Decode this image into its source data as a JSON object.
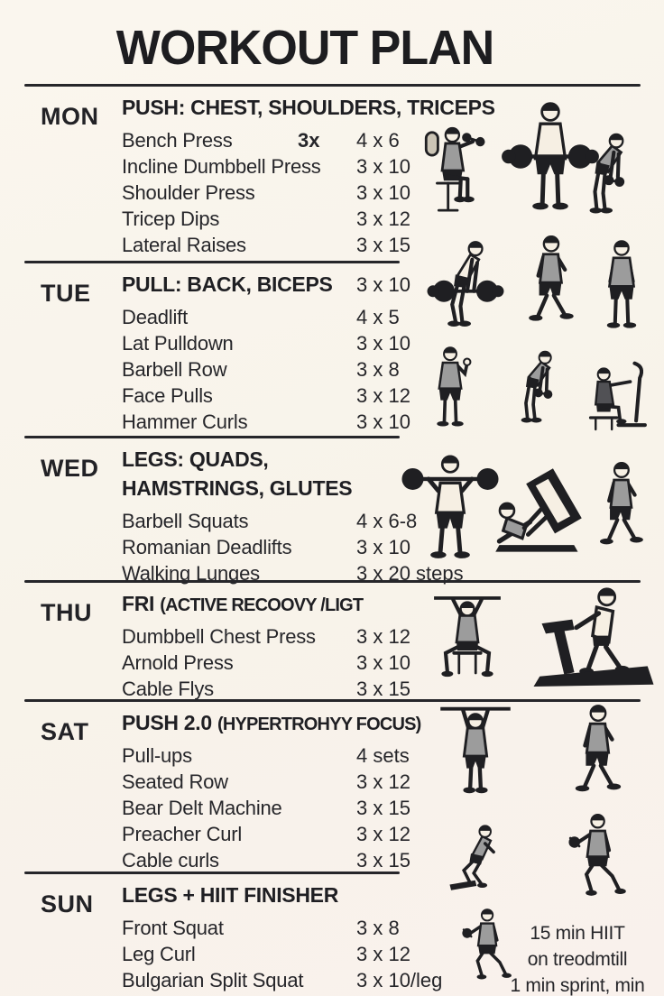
{
  "poster": {
    "title": "WORKOUT PLAN",
    "hiit_note_lines": [
      "15 min HIIT",
      "on treodmtill",
      "1 min sprint, min"
    ]
  },
  "colors": {
    "background": "#f8f3ea",
    "ink": "#1f1f22",
    "figure_gray": "#9c9c9c"
  },
  "sections": [
    {
      "day": "MON",
      "heading": "PUSH: CHEST, SHOULDERS, TRICEPS",
      "heading_note": "",
      "heading_value": "",
      "exercises": [
        {
          "name": "Bench Press",
          "note": "3x",
          "sets": "4 x 6"
        },
        {
          "name": "Incline Dumbbell Press",
          "note": "",
          "sets": "3 x 10"
        },
        {
          "name": "Shoulder Press",
          "note": "",
          "sets": "3 x 10"
        },
        {
          "name": "Tricep Dips",
          "note": "",
          "sets": "3 x 12"
        },
        {
          "name": "Lateral Raises",
          "note": "",
          "sets": "3 x 15"
        }
      ],
      "figures": [
        "seated-dumbbell-press",
        "standing-barbell",
        "bent-over-dumbbell"
      ]
    },
    {
      "day": "TUE",
      "heading": "PULL: BACK, BICEPS",
      "heading_note": "",
      "heading_value": "3 x 10",
      "exercises": [
        {
          "name": "Deadlift",
          "note": "",
          "sets": "4 x 5"
        },
        {
          "name": "Lat Pulldown",
          "note": "",
          "sets": "3 x 10"
        },
        {
          "name": "Barbell Row",
          "note": "",
          "sets": "3 x 8"
        },
        {
          "name": "Face Pulls",
          "note": "",
          "sets": "3 x 12"
        },
        {
          "name": "Hammer Curls",
          "note": "",
          "sets": "3 x 10"
        }
      ],
      "figures": [
        "barbell-deadlift",
        "walking",
        "standing-rest",
        "bicep-curl",
        "bent-over-dumbbell",
        "seated-cable-machine"
      ]
    },
    {
      "day": "WED",
      "heading": "LEGS: QUADS,\nHAMSTRINGS, GLUTES",
      "heading_note": "",
      "heading_value": "",
      "exercises": [
        {
          "name": "Barbell Squats",
          "note": "",
          "sets": "4 x 6-8"
        },
        {
          "name": "Romanian Deadlifts",
          "note": "",
          "sets": "3 x 10"
        },
        {
          "name": "Walking Lunges",
          "note": "",
          "sets": "3 x 20 steps"
        }
      ],
      "figures": [
        "barbell-squat",
        "leg-press-machine",
        "walking"
      ]
    },
    {
      "day": "THU",
      "heading": "FRI",
      "heading_note": "(ACTIVE RECOOVY /LIGT",
      "heading_value": "",
      "exercises": [
        {
          "name": "Dumbbell Chest Press",
          "note": "",
          "sets": "3 x 12"
        },
        {
          "name": "Arnold Press",
          "note": "",
          "sets": "3 x 10"
        },
        {
          "name": "Cable Flys",
          "note": "",
          "sets": "3 x 15"
        }
      ],
      "figures": [
        "seated-overhead-press",
        "treadmill"
      ]
    },
    {
      "day": "SAT",
      "heading": "PUSH 2.0",
      "heading_note": "(HYPERTROHYY FOCUS)",
      "heading_value": "",
      "exercises": [
        {
          "name": "Pull-ups",
          "note": "",
          "sets": "4 sets"
        },
        {
          "name": "Seated Row",
          "note": "",
          "sets": "3 x 12"
        },
        {
          "name": "Bear Delt Machine",
          "note": "",
          "sets": "3 x 15"
        },
        {
          "name": "Preacher Curl",
          "note": "",
          "sets": "3 x 12"
        },
        {
          "name": "Cable curls",
          "note": "",
          "sets": "3 x 15"
        }
      ],
      "figures": [
        "pull-up",
        "running",
        "bodyweight-squat",
        "dumbbell-lunge"
      ]
    },
    {
      "day": "SUN",
      "heading": "LEGS + HIIT FINISHER",
      "heading_note": "",
      "heading_value": "",
      "exercises": [
        {
          "name": "Front Squat",
          "note": "",
          "sets": "3 x 8"
        },
        {
          "name": "Leg Curl",
          "note": "",
          "sets": "3 x 12"
        },
        {
          "name": "Bulgarian Split Squat",
          "note": "",
          "sets": "3 x 10/leg"
        }
      ],
      "figures": [
        "dumbbell-lunge"
      ]
    }
  ]
}
